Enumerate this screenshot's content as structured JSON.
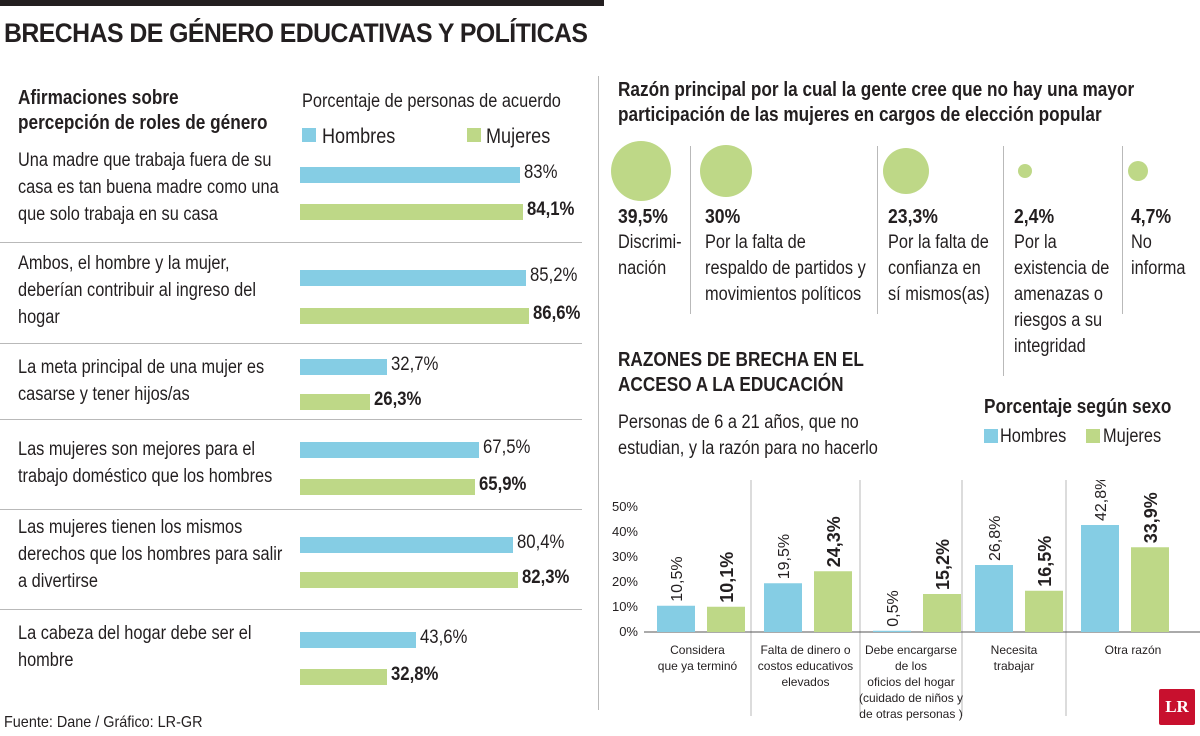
{
  "title": "BRECHAS DE GÉNERO EDUCATIVAS Y POLÍTICAS",
  "left": {
    "heading_line1": "Afirmaciones sobre",
    "heading_line2": "percepción de roles de género",
    "pct_heading": "Porcentaje de personas de acuerdo",
    "legend_hombres": "Hombres",
    "legend_mujeres": "Mujeres"
  },
  "right": {
    "heading_line1": "Razón principal por la cual la gente cree que no hay una mayor",
    "heading_line2": "participación de las mujeres en cargos de elección popular",
    "reasons": [
      {
        "pct_label": "39,5%",
        "line1": "Discrimi-",
        "line2": "nación",
        "line3": "",
        "line4": "",
        "line5": ""
      },
      {
        "pct_label": "30%",
        "line1": "Por la falta de",
        "line2": "respaldo de partidos y",
        "line3": "movimientos políticos",
        "line4": "",
        "line5": ""
      },
      {
        "pct_label": "23,3%",
        "line1": "Por la falta de",
        "line2": "confianza en",
        "line3": "sí mismos(as)",
        "line4": "",
        "line5": ""
      },
      {
        "pct_label": "2,4%",
        "line1": "Por la",
        "line2": "existencia de",
        "line3": "amenazas o",
        "line4": "riesgos a su",
        "line5": "integridad"
      },
      {
        "pct_label": "4,7%",
        "line1": "No",
        "line2": "informa",
        "line3": "",
        "line4": "",
        "line5": ""
      }
    ],
    "edu_heading_line1": "RAZONES DE BRECHA EN EL",
    "edu_heading_line2": "ACCESO A LA EDUCACIÓN",
    "edu_sub_line1": "Personas de 6 a 21 años, que no",
    "edu_sub_line2": "estudian, y la razón para no hacerlo",
    "pct_sexo": "Porcentaje según sexo",
    "legend_hombres": "Hombres",
    "legend_mujeres": "Mujeres"
  },
  "footer": {
    "source": "Fuente: Dane / Gráfico: LR-GR",
    "logo": "LR"
  },
  "colors": {
    "hombres": "#85cde4",
    "mujeres": "#bed887",
    "text": "#231f20",
    "logo_red": "#c8102e"
  },
  "chart_data": [
    {
      "type": "bar",
      "orientation": "horizontal",
      "title": "Afirmaciones sobre percepción de roles de género",
      "xlabel": "Porcentaje de personas de acuerdo",
      "categories": [
        [
          "Una madre que trabaja fuera de su",
          "casa es tan buena madre como una",
          "que solo trabaja en su casa"
        ],
        [
          "Ambos, el hombre y la mujer,",
          "deberían contribuir al ingreso del",
          "hogar"
        ],
        [
          "La meta principal de una mujer es",
          "casarse y tener hijos/as"
        ],
        [
          "Las mujeres son mejores para el",
          "trabajo doméstico que los hombres"
        ],
        [
          "Las mujeres tienen los mismos",
          "derechos que los hombres para salir",
          "a divertirse"
        ],
        [
          "La cabeza del hogar debe ser el",
          "hombre"
        ]
      ],
      "series": [
        {
          "name": "Hombres",
          "values": [
            83,
            85.2,
            32.7,
            67.5,
            80.4,
            43.6
          ],
          "labels": [
            "83%",
            "85,2%",
            "32,7%",
            "67,5%",
            "80,4%",
            "43,6%"
          ]
        },
        {
          "name": "Mujeres",
          "values": [
            84.1,
            86.6,
            26.3,
            65.9,
            82.3,
            32.8
          ],
          "labels": [
            "84,1%",
            "86,6%",
            "26,3%",
            "65,9%",
            "82,3%",
            "32,8%"
          ]
        }
      ]
    },
    {
      "type": "bubble",
      "title": "Razón principal por la cual la gente cree que no hay una mayor participación de las mujeres en cargos de elección popular",
      "categories": [
        "Discriminación",
        "Por la falta de respaldo de partidos y movimientos políticos",
        "Por la falta de confianza en sí mismos(as)",
        "Por la existencia de amenazas o riesgos a su integridad",
        "No informa"
      ],
      "values": [
        39.5,
        30,
        23.3,
        2.4,
        4.7
      ]
    },
    {
      "type": "bar",
      "title": "Razones de brecha en el acceso a la educación",
      "ylabel": "Porcentaje según sexo",
      "ylim": [
        0,
        50
      ],
      "yticks": [
        "0%",
        "10%",
        "20%",
        "30%",
        "40%",
        "50%"
      ],
      "categories": [
        [
          "Considera",
          "que ya terminó"
        ],
        [
          "Falta de dinero o",
          "costos educativos",
          "elevados"
        ],
        [
          "Debe encargarse",
          "de los",
          "oficios del hogar",
          "(cuidado de niños y",
          "de otras personas )"
        ],
        [
          "Necesita",
          "trabajar"
        ],
        [
          "Otra razón"
        ]
      ],
      "series": [
        {
          "name": "Hombres",
          "values": [
            10.5,
            19.5,
            0.5,
            26.8,
            42.8
          ],
          "labels": [
            "10,5%",
            "19,5%",
            "0,5%",
            "26,8%",
            "42,8%"
          ]
        },
        {
          "name": "Mujeres",
          "values": [
            10.1,
            24.3,
            15.2,
            16.5,
            33.9
          ],
          "labels": [
            "10,1%",
            "24,3%",
            "15,2%",
            "16,5%",
            "33,9%"
          ]
        }
      ]
    }
  ]
}
